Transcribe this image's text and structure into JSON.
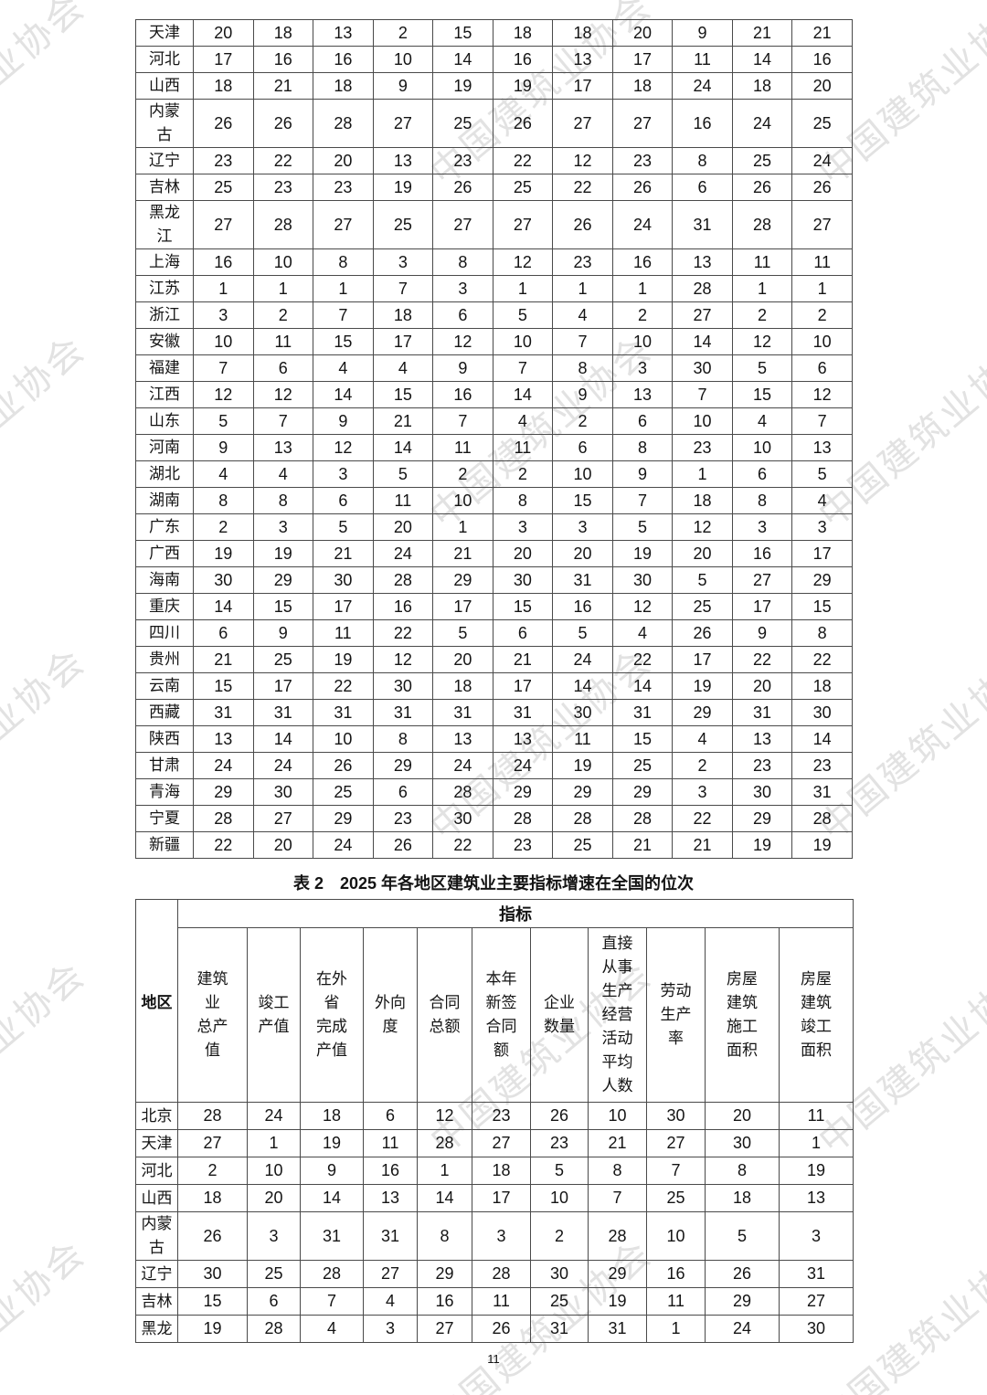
{
  "page": {
    "number": "11"
  },
  "watermark": {
    "text": "中国建筑业协会",
    "color": "#e2e2e2"
  },
  "table1": {
    "rows": [
      {
        "region": "天津",
        "values": [
          20,
          18,
          13,
          2,
          15,
          18,
          18,
          20,
          9,
          21,
          21
        ]
      },
      {
        "region": "河北",
        "values": [
          17,
          16,
          16,
          10,
          14,
          16,
          13,
          17,
          11,
          14,
          16
        ]
      },
      {
        "region": "山西",
        "values": [
          18,
          21,
          18,
          9,
          19,
          19,
          17,
          18,
          24,
          18,
          20
        ]
      },
      {
        "region": "内蒙\n古",
        "values": [
          26,
          26,
          28,
          27,
          25,
          26,
          27,
          27,
          16,
          24,
          25
        ]
      },
      {
        "region": "辽宁",
        "values": [
          23,
          22,
          20,
          13,
          23,
          22,
          12,
          23,
          8,
          25,
          24
        ]
      },
      {
        "region": "吉林",
        "values": [
          25,
          23,
          23,
          19,
          26,
          25,
          22,
          26,
          6,
          26,
          26
        ]
      },
      {
        "region": "黑龙\n江",
        "values": [
          27,
          28,
          27,
          25,
          27,
          27,
          26,
          24,
          31,
          28,
          27
        ]
      },
      {
        "region": "上海",
        "values": [
          16,
          10,
          8,
          3,
          8,
          12,
          23,
          16,
          13,
          11,
          11
        ]
      },
      {
        "region": "江苏",
        "values": [
          1,
          1,
          1,
          7,
          3,
          1,
          1,
          1,
          28,
          1,
          1
        ]
      },
      {
        "region": "浙江",
        "values": [
          3,
          2,
          7,
          18,
          6,
          5,
          4,
          2,
          27,
          2,
          2
        ]
      },
      {
        "region": "安徽",
        "values": [
          10,
          11,
          15,
          17,
          12,
          10,
          7,
          10,
          14,
          12,
          10
        ]
      },
      {
        "region": "福建",
        "values": [
          7,
          6,
          4,
          4,
          9,
          7,
          8,
          3,
          30,
          5,
          6
        ]
      },
      {
        "region": "江西",
        "values": [
          12,
          12,
          14,
          15,
          16,
          14,
          9,
          13,
          7,
          15,
          12
        ]
      },
      {
        "region": "山东",
        "values": [
          5,
          7,
          9,
          21,
          7,
          4,
          2,
          6,
          10,
          4,
          7
        ]
      },
      {
        "region": "河南",
        "values": [
          9,
          13,
          12,
          14,
          11,
          11,
          6,
          8,
          23,
          10,
          13
        ]
      },
      {
        "region": "湖北",
        "values": [
          4,
          4,
          3,
          5,
          2,
          2,
          10,
          9,
          1,
          6,
          5
        ]
      },
      {
        "region": "湖南",
        "values": [
          8,
          8,
          6,
          11,
          10,
          8,
          15,
          7,
          18,
          8,
          4
        ]
      },
      {
        "region": "广东",
        "values": [
          2,
          3,
          5,
          20,
          1,
          3,
          3,
          5,
          12,
          3,
          3
        ]
      },
      {
        "region": "广西",
        "values": [
          19,
          19,
          21,
          24,
          21,
          20,
          20,
          19,
          20,
          16,
          17
        ]
      },
      {
        "region": "海南",
        "values": [
          30,
          29,
          30,
          28,
          29,
          30,
          31,
          30,
          5,
          27,
          29
        ]
      },
      {
        "region": "重庆",
        "values": [
          14,
          15,
          17,
          16,
          17,
          15,
          16,
          12,
          25,
          17,
          15
        ]
      },
      {
        "region": "四川",
        "values": [
          6,
          9,
          11,
          22,
          5,
          6,
          5,
          4,
          26,
          9,
          8
        ]
      },
      {
        "region": "贵州",
        "values": [
          21,
          25,
          19,
          12,
          20,
          21,
          24,
          22,
          17,
          22,
          22
        ]
      },
      {
        "region": "云南",
        "values": [
          15,
          17,
          22,
          30,
          18,
          17,
          14,
          14,
          19,
          20,
          18
        ]
      },
      {
        "region": "西藏",
        "values": [
          31,
          31,
          31,
          31,
          31,
          31,
          30,
          31,
          29,
          31,
          30
        ]
      },
      {
        "region": "陕西",
        "values": [
          13,
          14,
          10,
          8,
          13,
          13,
          11,
          15,
          4,
          13,
          14
        ]
      },
      {
        "region": "甘肃",
        "values": [
          24,
          24,
          26,
          29,
          24,
          24,
          19,
          25,
          2,
          23,
          23
        ]
      },
      {
        "region": "青海",
        "values": [
          29,
          30,
          25,
          6,
          28,
          29,
          29,
          29,
          3,
          30,
          31
        ]
      },
      {
        "region": "宁夏",
        "values": [
          28,
          27,
          29,
          23,
          30,
          28,
          28,
          28,
          22,
          29,
          28
        ]
      },
      {
        "region": "新疆",
        "values": [
          22,
          20,
          24,
          26,
          22,
          23,
          25,
          21,
          21,
          19,
          19
        ]
      }
    ]
  },
  "table2": {
    "caption": "表 2　2025 年各地区建筑业主要指标增速在全国的位次",
    "corner_header": "地区",
    "group_header": "指标",
    "columns": [
      "建筑\n业\n总产\n值",
      "竣工\n产值",
      "在外\n省\n完成\n产值",
      "外向\n度",
      "合同\n总额",
      "本年\n新签\n合同\n额",
      "企业\n数量",
      "直接\n从事\n生产\n经营\n活动\n平均\n人数",
      "劳动\n生产\n率",
      "房屋\n建筑\n施工\n面积",
      "房屋\n建筑\n竣工\n面积"
    ],
    "rows": [
      {
        "region": "北京",
        "values": [
          28,
          24,
          18,
          6,
          12,
          23,
          26,
          10,
          30,
          20,
          11
        ]
      },
      {
        "region": "天津",
        "values": [
          27,
          1,
          19,
          11,
          28,
          27,
          23,
          21,
          27,
          30,
          1
        ]
      },
      {
        "region": "河北",
        "values": [
          2,
          10,
          9,
          16,
          1,
          18,
          5,
          8,
          7,
          8,
          19
        ]
      },
      {
        "region": "山西",
        "values": [
          18,
          20,
          14,
          13,
          14,
          17,
          10,
          7,
          25,
          18,
          13
        ]
      },
      {
        "region": "内蒙\n古",
        "values": [
          26,
          3,
          31,
          31,
          8,
          3,
          2,
          28,
          10,
          5,
          3
        ]
      },
      {
        "region": "辽宁",
        "values": [
          30,
          25,
          28,
          27,
          29,
          28,
          30,
          29,
          16,
          26,
          31
        ]
      },
      {
        "region": "吉林",
        "values": [
          15,
          6,
          7,
          4,
          16,
          11,
          25,
          19,
          11,
          29,
          27
        ]
      },
      {
        "region": "黑龙",
        "values": [
          19,
          28,
          4,
          3,
          27,
          26,
          31,
          31,
          1,
          24,
          30
        ]
      }
    ]
  }
}
